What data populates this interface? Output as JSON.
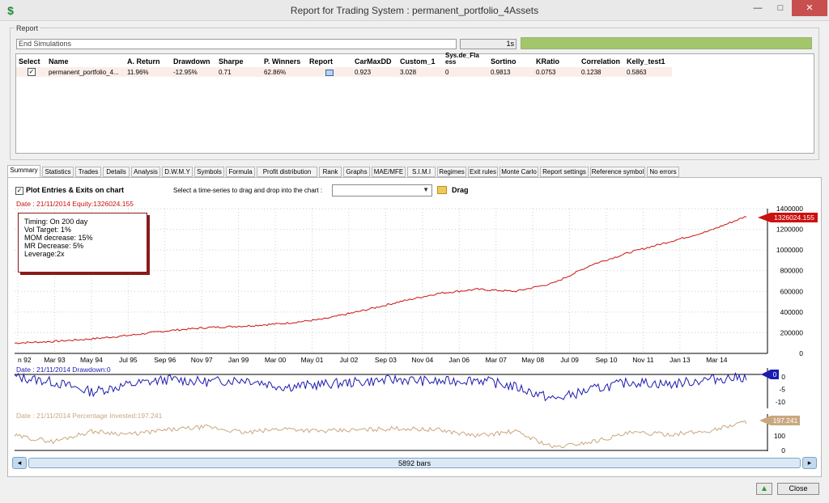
{
  "window": {
    "title": "Report for Trading System : permanent_portfolio_4Assets",
    "minimize": "—",
    "maximize": "□",
    "close": "✕",
    "app_icon": "dollar-sign-icon"
  },
  "report": {
    "group_label": "Report",
    "status_text": "End Simulations",
    "elapsed": "1s",
    "progress": 1.0,
    "columns": [
      "Select",
      "Name",
      "A. Return",
      "Drawdown",
      "Sharpe",
      "P. Winners",
      "Report",
      "CarMaxDD",
      "Custom_1",
      "Sys.de_Fla\ness",
      "Sortino",
      "KRatio",
      "Correlation",
      "Kelly_test1"
    ],
    "rows": [
      {
        "selected": true,
        "name": "permanent_portfolio_4...",
        "a_return": "11.96%",
        "drawdown": "-12.95%",
        "sharpe": "0.71",
        "p_winners": "62.86%",
        "carmaxdd": "0.923",
        "custom_1": "3.028",
        "sys": "0",
        "sortino": "0.9813",
        "kratio": "0.0753",
        "correlation": "0.1238",
        "kelly": "0.5863"
      }
    ]
  },
  "tabs": [
    "Summary",
    "Statistics",
    "Trades",
    "Details",
    "Analysis",
    "D.W.M.Y",
    "Symbols",
    "Formula",
    "Profit distribution",
    "Rank",
    "Graphs",
    "MAE/MFE",
    "S.I.M.I",
    "Regimes",
    "Exit rules",
    "Monte Carlo",
    "Report settings",
    "Reference symbol",
    "No errors"
  ],
  "active_tab": "Summary",
  "toolbar": {
    "plot_label": "Plot Entries & Exits on chart",
    "plot_checked": true,
    "drag_prompt": "Select a time-series to drag and drop into the chart :",
    "drag_label": "Drag",
    "select_value": ""
  },
  "info_box": {
    "lines": [
      "Timing: On 200 day",
      "Vol Target: 1%",
      "MOM decrease: 15%",
      "MR Decrease: 5%",
      "Leverage:2x"
    ]
  },
  "equity_chart": {
    "header": "Date : 21/11/2014   Equity:1326024.155",
    "last_value_label": "1326024.155",
    "line_color": "#cc1111",
    "y_ticks": [
      "0",
      "200000",
      "400000",
      "600000",
      "800000",
      "1000000",
      "1200000",
      "1400000"
    ],
    "x_ticks": [
      "n 92",
      "Mar 93",
      "May 94",
      "Jul 95",
      "Sep 96",
      "Nov 97",
      "Jan 99",
      "Mar 00",
      "May 01",
      "Jul 02",
      "Sep 03",
      "Nov 04",
      "Jan 06",
      "Mar 07",
      "May 08",
      "Jul 09",
      "Sep 10",
      "Nov 11",
      "Jan 13",
      "Mar 14"
    ]
  },
  "drawdown_chart": {
    "header": "Date : 21/11/2014   Drawdown:0",
    "last_value_label": "0",
    "line_color": "#1b1bb0",
    "y_ticks": [
      "0",
      "-5",
      "-10"
    ]
  },
  "invested_chart": {
    "header": "Date : 21/11/2014   Percentage Invested:197.241",
    "last_value_label": "197.241",
    "line_color": "#c9a77f",
    "y_ticks": [
      "100",
      "0"
    ]
  },
  "chart_data": [
    {
      "type": "line",
      "title": "",
      "series": [
        {
          "values": [
            100000,
            115000,
            140000,
            175000,
            220000,
            250000,
            265000,
            290000,
            330000,
            410000,
            500000,
            580000,
            620000,
            600000,
            680000,
            860000,
            980000,
            1080000,
            1180000,
            1326024
          ]
        }
      ],
      "categories": [
        "n 92",
        "Mar 93",
        "May 94",
        "Jul 95",
        "Sep 96",
        "Nov 97",
        "Jan 99",
        "Mar 00",
        "May 01",
        "Jul 02",
        "Sep 03",
        "Nov 04",
        "Jan 06",
        "Mar 07",
        "May 08",
        "Jul 09",
        "Sep 10",
        "Nov 11",
        "Jan 13",
        "Mar 14"
      ],
      "ylim": [
        0,
        1400000
      ]
    },
    {
      "type": "line",
      "title": "",
      "series": [
        {
          "values": [
            0,
            -2,
            -6,
            -3,
            -1,
            -2,
            -1,
            -4,
            -3,
            -2,
            -1,
            -2,
            -1,
            -4,
            -9,
            -5,
            -2,
            -3,
            -1,
            0
          ]
        }
      ],
      "ylim": [
        -12,
        1
      ]
    },
    {
      "type": "line",
      "title": "",
      "series": [
        {
          "values": [
            100,
            60,
            130,
            110,
            140,
            160,
            120,
            150,
            130,
            140,
            150,
            140,
            100,
            130,
            20,
            60,
            120,
            110,
            130,
            197.241
          ]
        }
      ],
      "ylim": [
        0,
        220
      ]
    }
  ],
  "scrollbar": {
    "label": "5892 bars"
  },
  "footer": {
    "up_icon": "arrow-up-icon",
    "close_label": "Close"
  }
}
